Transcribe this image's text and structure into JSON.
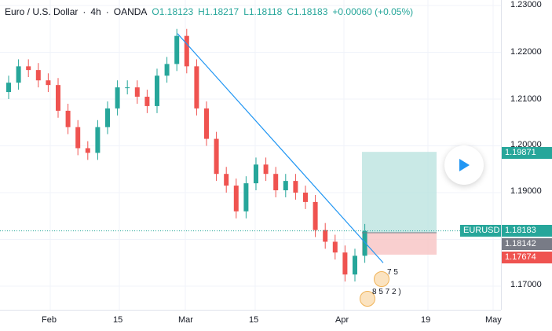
{
  "legend": {
    "symbol": "Euro / U.S. Dollar",
    "interval": "4h",
    "exchange": "OANDA",
    "open": "O1.18123",
    "high": "H1.18217",
    "low": "L1.18118",
    "close": "C1.18183",
    "change": "+0.00060 (+0.05%)"
  },
  "price_axis": {
    "ticks": [
      "1.23000",
      "1.22000",
      "1.21000",
      "1.20000",
      "1.19000",
      "1.17000"
    ],
    "target_price": "1.19871",
    "symbol_tag": "EURUSD",
    "current_price": "1.18183",
    "entry_price": "1.18142",
    "stop_price": "1.17674"
  },
  "time_axis": {
    "ticks": [
      "Feb",
      "15",
      "Mar",
      "15",
      "Apr",
      "19",
      "May"
    ]
  },
  "events": {
    "badge_1_label": "7 5",
    "badge_2_label": "8 5 7 2 )"
  },
  "colors": {
    "up": "#26a69a",
    "down": "#ef5350",
    "trendline": "#2196f3",
    "target_zone": "#b2dfdb",
    "stop_zone": "#f8c3c3",
    "target_tag": "#26a69a",
    "entry_tag": "#787b86",
    "stop_tag": "#ef5350",
    "price_line": "#26a69a",
    "play": "#2196f3"
  },
  "chart_data": {
    "type": "candlestick",
    "symbol": "EURUSD",
    "interval": "4h",
    "ylim": [
      1.165,
      1.23
    ],
    "x": [
      "Jan 22",
      "Jan 24",
      "Jan 26",
      "Jan 28",
      "Jan 30",
      "Feb 1",
      "Feb 3",
      "Feb 5",
      "Feb 7",
      "Feb 9",
      "Feb 11",
      "Feb 13",
      "Feb 15",
      "Feb 17",
      "Feb 19",
      "Feb 21",
      "Feb 23",
      "Feb 25",
      "Feb 27",
      "Mar 1",
      "Mar 3",
      "Mar 5",
      "Mar 7",
      "Mar 9",
      "Mar 11",
      "Mar 13",
      "Mar 15",
      "Mar 17",
      "Mar 19",
      "Mar 21",
      "Mar 23",
      "Mar 25",
      "Mar 27",
      "Mar 29",
      "Mar 31",
      "Apr 2",
      "Apr 4"
    ],
    "close": [
      1.2135,
      1.217,
      1.2162,
      1.214,
      1.213,
      1.2075,
      1.204,
      1.1995,
      1.1985,
      1.204,
      1.208,
      1.2125,
      1.2125,
      1.2105,
      1.2085,
      1.215,
      1.2175,
      1.2235,
      1.217,
      1.208,
      1.2015,
      1.194,
      1.1915,
      1.186,
      1.192,
      1.196,
      1.194,
      1.1905,
      1.1925,
      1.19,
      1.188,
      1.182,
      1.1795,
      1.1772,
      1.1725,
      1.1765,
      1.1818
    ],
    "trendline": {
      "from": [
        "Feb 25",
        1.224
      ],
      "to": [
        "Apr 6",
        1.175
      ]
    },
    "position": {
      "target": 1.19871,
      "entry": 1.18142,
      "stop": 1.17674
    },
    "current_price": 1.18183
  }
}
